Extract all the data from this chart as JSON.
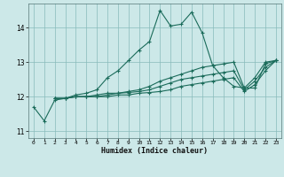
{
  "xlabel": "Humidex (Indice chaleur)",
  "background_color": "#cce8e8",
  "grid_color": "#88bbbb",
  "line_color": "#1a6b5a",
  "xlim": [
    -0.5,
    23.5
  ],
  "ylim": [
    10.8,
    14.7
  ],
  "yticks": [
    11,
    12,
    13,
    14
  ],
  "xticks": [
    0,
    1,
    2,
    3,
    4,
    5,
    6,
    7,
    8,
    9,
    10,
    11,
    12,
    13,
    14,
    15,
    16,
    17,
    18,
    19,
    20,
    21,
    22,
    23
  ],
  "series": [
    {
      "x": [
        0,
        1,
        2,
        3,
        4,
        5,
        6,
        7,
        8,
        9,
        10,
        11,
        12,
        13,
        14,
        15,
        16,
        17,
        18,
        19,
        20,
        21,
        22,
        23
      ],
      "y": [
        11.7,
        11.3,
        11.9,
        11.95,
        12.05,
        12.1,
        12.2,
        12.55,
        12.75,
        13.05,
        13.35,
        13.6,
        14.5,
        14.05,
        14.1,
        14.45,
        13.85,
        12.9,
        12.55,
        12.3,
        12.25,
        12.25,
        12.95,
        13.05
      ]
    },
    {
      "x": [
        2,
        3,
        4,
        5,
        6,
        7,
        8,
        9,
        10,
        11,
        12,
        13,
        14,
        15,
        16,
        17,
        18,
        19,
        20,
        21,
        22,
        23
      ],
      "y": [
        11.95,
        11.95,
        12.0,
        12.0,
        12.05,
        12.1,
        12.1,
        12.15,
        12.2,
        12.3,
        12.45,
        12.55,
        12.65,
        12.75,
        12.85,
        12.9,
        12.95,
        13.0,
        12.25,
        12.55,
        13.0,
        13.05
      ]
    },
    {
      "x": [
        2,
        3,
        4,
        5,
        6,
        7,
        8,
        9,
        10,
        11,
        12,
        13,
        14,
        15,
        16,
        17,
        18,
        19,
        20,
        21,
        22,
        23
      ],
      "y": [
        11.95,
        11.95,
        12.0,
        12.0,
        12.0,
        12.05,
        12.1,
        12.12,
        12.15,
        12.2,
        12.3,
        12.4,
        12.5,
        12.55,
        12.6,
        12.65,
        12.7,
        12.75,
        12.2,
        12.45,
        12.85,
        13.05
      ]
    },
    {
      "x": [
        2,
        3,
        4,
        5,
        6,
        7,
        8,
        9,
        10,
        11,
        12,
        13,
        14,
        15,
        16,
        17,
        18,
        19,
        20,
        21,
        22,
        23
      ],
      "y": [
        11.95,
        11.95,
        12.0,
        12.0,
        12.0,
        12.0,
        12.05,
        12.05,
        12.1,
        12.12,
        12.15,
        12.2,
        12.3,
        12.35,
        12.4,
        12.45,
        12.5,
        12.55,
        12.15,
        12.35,
        12.75,
        13.05
      ]
    }
  ]
}
